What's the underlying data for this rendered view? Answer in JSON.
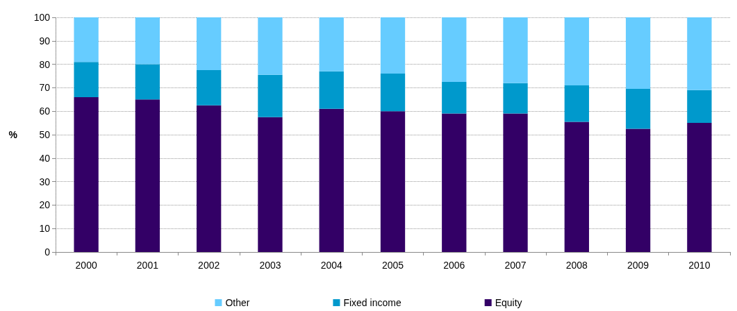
{
  "chart_data": {
    "type": "bar",
    "stacked": true,
    "ylabel": "%",
    "categories": [
      "2000",
      "2001",
      "2002",
      "2003",
      "2004",
      "2005",
      "2006",
      "2007",
      "2008",
      "2009",
      "2010"
    ],
    "series": [
      {
        "name": "Equity",
        "color": "#330066",
        "values": [
          66,
          65,
          62.5,
          57.5,
          61,
          60,
          59,
          59,
          55.5,
          52.5,
          55
        ]
      },
      {
        "name": "Fixed income",
        "color": "#0099cc",
        "values": [
          15,
          15,
          15,
          18,
          16,
          16,
          13.5,
          13,
          15.5,
          17,
          14
        ]
      },
      {
        "name": "Other",
        "color": "#66ccff",
        "values": [
          19,
          20,
          22.5,
          24.5,
          23,
          24,
          27.5,
          28,
          29,
          30.5,
          31
        ]
      }
    ],
    "ylim": [
      0,
      100
    ],
    "yticks": [
      0,
      10,
      20,
      30,
      40,
      50,
      60,
      70,
      80,
      90,
      100
    ],
    "grid": "y",
    "legend": "bottom"
  }
}
